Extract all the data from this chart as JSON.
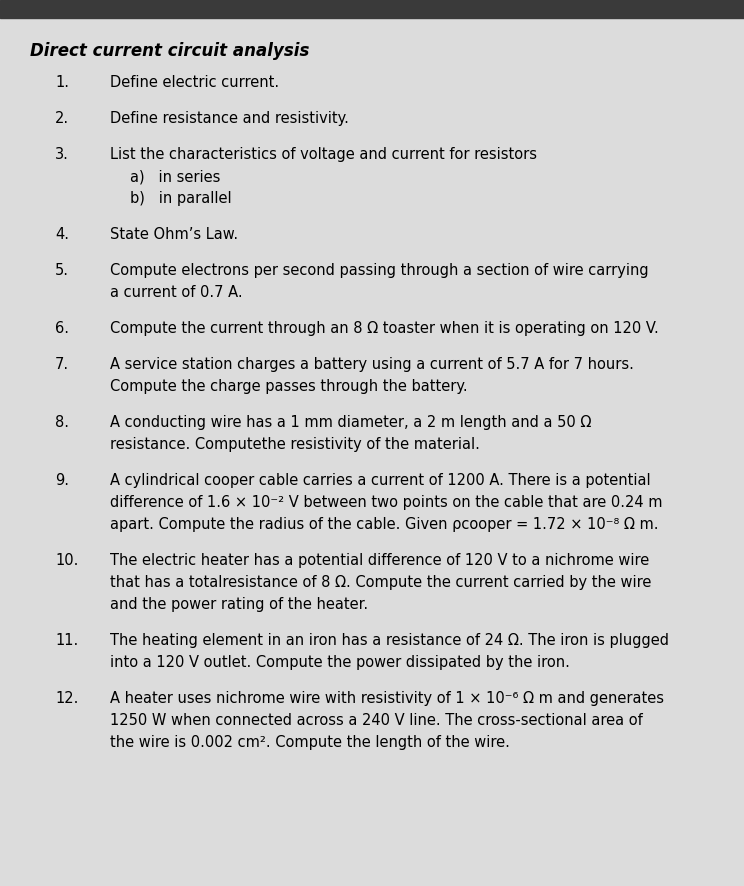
{
  "title": "Direct current circuit analysis",
  "bg_color": "#dcdcdc",
  "top_bar_color": "#3a3a3a",
  "title_fontsize": 12,
  "item_fontsize": 10.5,
  "items": [
    {
      "number": "1.",
      "lines": [
        "Define electric current."
      ]
    },
    {
      "number": "2.",
      "lines": [
        "Define resistance and resistivity."
      ]
    },
    {
      "number": "3.",
      "lines": [
        "List the characteristics of voltage and current for resistors",
        "a)   in series",
        "b)   in parallel"
      ]
    },
    {
      "number": "4.",
      "lines": [
        "State Ohm’s Law."
      ]
    },
    {
      "number": "5.",
      "lines": [
        "Compute electrons per second passing through a section of wire carrying",
        "a current of 0.7 A."
      ]
    },
    {
      "number": "6.",
      "lines": [
        "Compute the current through an 8 Ω toaster when it is operating on 120 V."
      ]
    },
    {
      "number": "7.",
      "lines": [
        "A service station charges a battery using a current of 5.7 A for 7 hours.",
        "Compute the charge passes through the battery."
      ]
    },
    {
      "number": "8.",
      "lines": [
        "A conducting wire has a 1 mm diameter, a 2 m length and a 50 Ω",
        "resistance. Computethe resistivity of the material."
      ]
    },
    {
      "number": "9.",
      "lines": [
        "A cylindrical cooper cable carries a current of 1200 A. There is a potential",
        "difference of 1.6 × 10⁻² V between two points on the cable that are 0.24 m",
        "apart. Compute the radius of the cable. Given ρcooper = 1.72 × 10⁻⁸ Ω m."
      ]
    },
    {
      "number": "10.",
      "lines": [
        "The electric heater has a potential difference of 120 V to a nichrome wire",
        "that has a totalresistance of 8 Ω. Compute the current carried by the wire",
        "and the power rating of the heater."
      ]
    },
    {
      "number": "11.",
      "lines": [
        "The heating element in an iron has a resistance of 24 Ω. The iron is plugged",
        "into a 120 V outlet. Compute the power dissipated by the iron."
      ]
    },
    {
      "number": "12.",
      "lines": [
        "A heater uses nichrome wire with resistivity of 1 × 10⁻⁶ Ω m and generates",
        "1250 W when connected across a 240 V line. The cross-sectional area of",
        "the wire is 0.002 cm². Compute the length of the wire."
      ]
    }
  ]
}
